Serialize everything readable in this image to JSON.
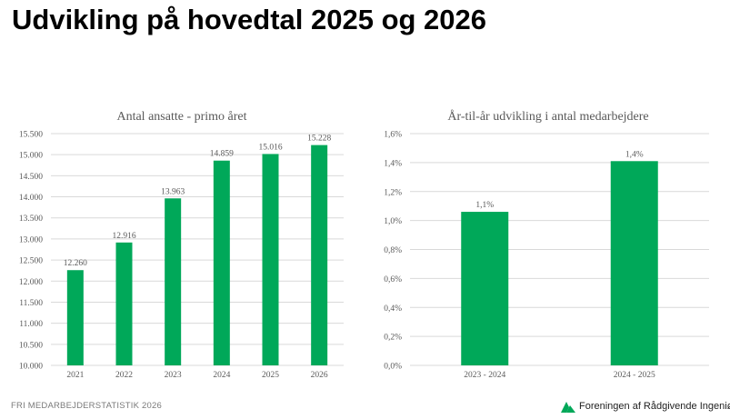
{
  "page": {
    "title": "Udvikling på hovedtal 2025 og 2026",
    "footer_left": "FRI MEDARBEJDERSTATISTIK 2026",
    "logo_text": "Foreningen af Rådgivende Ingeniører"
  },
  "colors": {
    "bar": "#00a859",
    "logo": "#00a859",
    "grid": "#d9d9d9",
    "axis_text": "#595959",
    "title_text": "#595959"
  },
  "chart_data": [
    {
      "type": "bar",
      "title": "Antal ansatte - primo året",
      "categories": [
        "2021",
        "2022",
        "2023",
        "2024",
        "2025",
        "2026"
      ],
      "values": [
        12260,
        12916,
        13963,
        14859,
        15016,
        15228
      ],
      "data_labels": [
        "12.260",
        "12.916",
        "13.963",
        "14.859",
        "15.016",
        "15.228"
      ],
      "ylim": [
        10000,
        15500
      ],
      "y_ticks": [
        10000,
        10500,
        11000,
        11500,
        12000,
        12500,
        13000,
        13500,
        14000,
        14500,
        15000,
        15500
      ],
      "y_tick_labels": [
        "10.000",
        "10.500",
        "11.000",
        "11.500",
        "12.000",
        "12.500",
        "13.000",
        "13.500",
        "14.000",
        "14.500",
        "15.000",
        "15.500"
      ],
      "xlabel": "",
      "ylabel": "",
      "grid": true,
      "legend": "none"
    },
    {
      "type": "bar",
      "title": "År-til-år udvikling i antal medarbejdere",
      "categories": [
        "2023 - 2024",
        "2024 - 2025"
      ],
      "values": [
        1.06,
        1.41
      ],
      "data_labels": [
        "1,1%",
        "1,4%"
      ],
      "ylim": [
        0,
        1.6
      ],
      "y_ticks": [
        0,
        0.2,
        0.4,
        0.6,
        0.8,
        1.0,
        1.2,
        1.4,
        1.6
      ],
      "y_tick_labels": [
        "0,0%",
        "0,2%",
        "0,4%",
        "0,6%",
        "0,8%",
        "1,0%",
        "1,2%",
        "1,4%",
        "1,6%"
      ],
      "xlabel": "",
      "ylabel": "",
      "grid": true,
      "legend": "none"
    }
  ]
}
